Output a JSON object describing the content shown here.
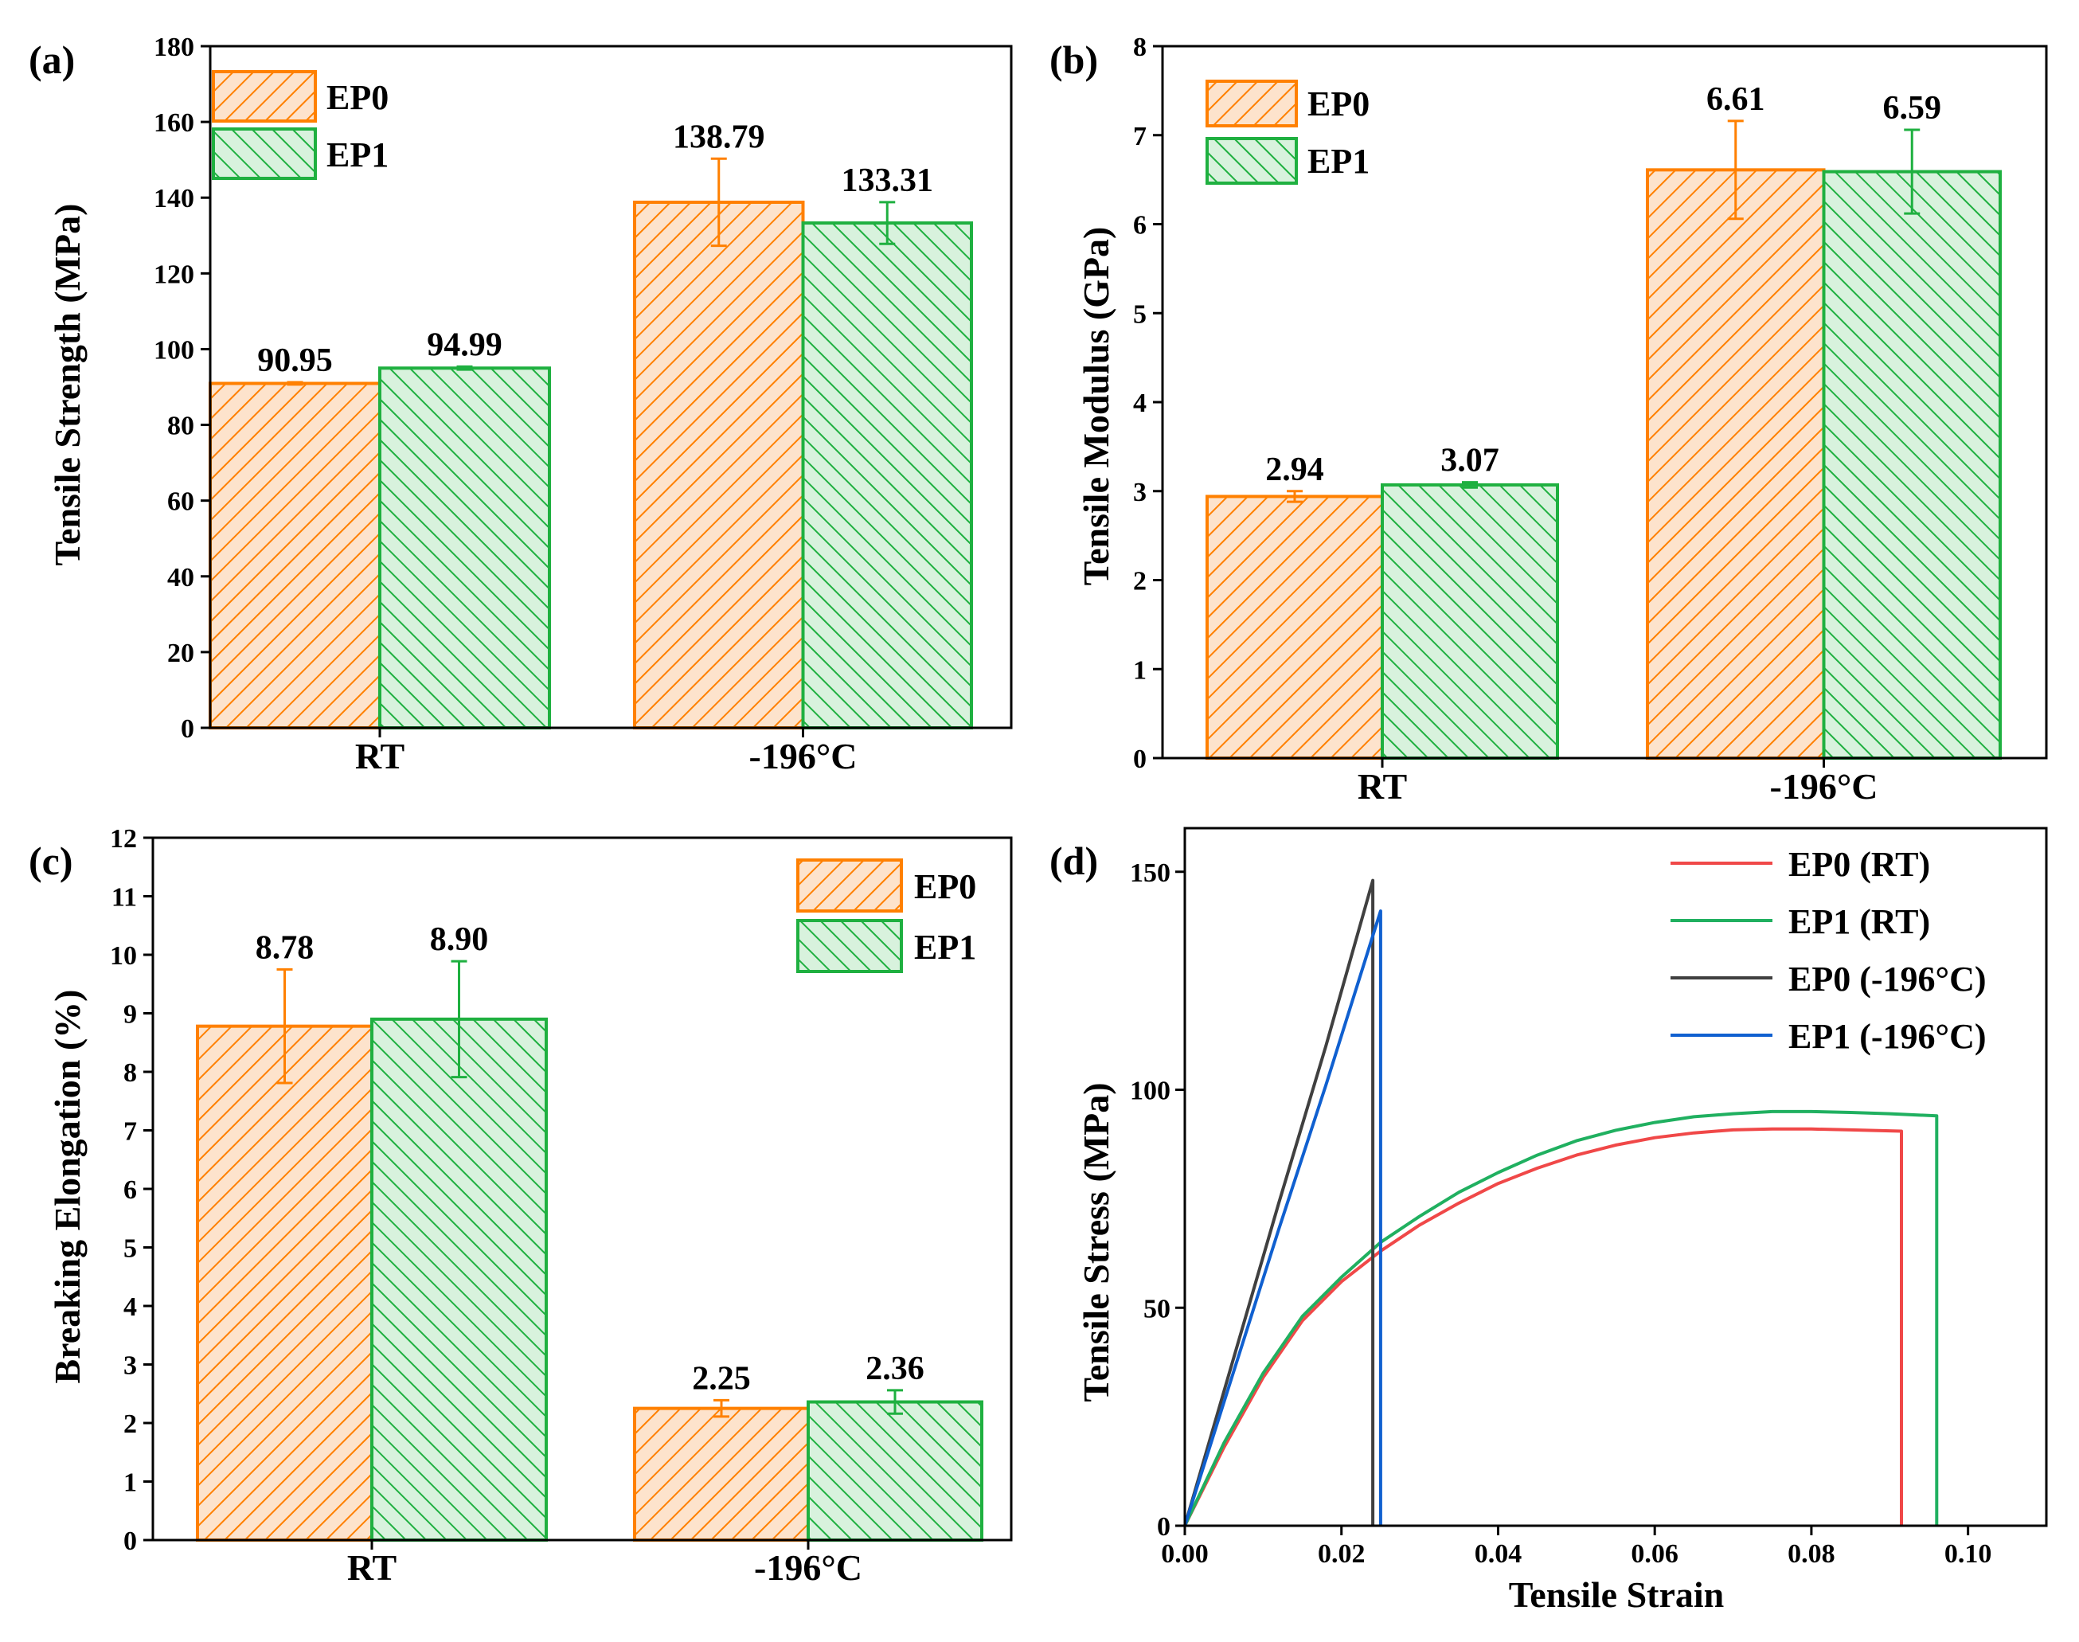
{
  "colors": {
    "ep0": "#ff8000",
    "ep0_fill": "#fde3cc",
    "ep1": "#1fb040",
    "ep1_fill": "#d8f2dd",
    "rt_line": "#f04848",
    "rt1_line": "#20b060",
    "cryo0_line": "#404040",
    "cryo1_line": "#1060d0",
    "axis": "#000000"
  },
  "chart_data": [
    {
      "panel": "(a)",
      "type": "bar",
      "ylabel": "Tensile Strength (MPa)",
      "categories": [
        "RT",
        "-196°C"
      ],
      "ylim": [
        0,
        180
      ],
      "yticks": [
        0,
        20,
        40,
        60,
        80,
        100,
        120,
        140,
        160,
        180
      ],
      "legend": [
        "EP0",
        "EP1"
      ],
      "legend_position": "top-left",
      "series": [
        {
          "name": "EP0",
          "values": [
            90.95,
            138.79
          ],
          "errors": [
            0.3,
            11.5
          ],
          "labels": [
            "90.95",
            "138.79"
          ]
        },
        {
          "name": "EP1",
          "values": [
            94.99,
            133.31
          ],
          "errors": [
            0.4,
            5.5
          ],
          "labels": [
            "94.99",
            "133.31"
          ]
        }
      ]
    },
    {
      "panel": "(b)",
      "type": "bar",
      "ylabel": "Tensile Modulus (GPa)",
      "categories": [
        "RT",
        "-196°C"
      ],
      "ylim": [
        0,
        8
      ],
      "yticks": [
        0,
        1,
        2,
        3,
        4,
        5,
        6,
        7,
        8
      ],
      "legend": [
        "EP0",
        "EP1"
      ],
      "legend_position": "top-left",
      "series": [
        {
          "name": "EP0",
          "values": [
            2.94,
            6.61
          ],
          "errors": [
            0.06,
            0.55
          ],
          "labels": [
            "2.94",
            "6.61"
          ]
        },
        {
          "name": "EP1",
          "values": [
            3.07,
            6.59
          ],
          "errors": [
            0.03,
            0.47
          ],
          "labels": [
            "3.07",
            "6.59"
          ]
        }
      ]
    },
    {
      "panel": "(c)",
      "type": "bar",
      "ylabel": "Breaking Elongation (%)",
      "categories": [
        "RT",
        "-196°C"
      ],
      "ylim": [
        0,
        12
      ],
      "yticks": [
        0,
        1,
        2,
        3,
        4,
        5,
        6,
        7,
        8,
        9,
        10,
        11,
        12
      ],
      "legend": [
        "EP0",
        "EP1"
      ],
      "legend_position": "top-right",
      "series": [
        {
          "name": "EP0",
          "values": [
            8.78,
            2.25
          ],
          "errors": [
            0.97,
            0.14
          ],
          "labels": [
            "8.78",
            "2.25"
          ]
        },
        {
          "name": "EP1",
          "values": [
            8.9,
            2.36
          ],
          "errors": [
            0.99,
            0.2
          ],
          "labels": [
            "8.90",
            "2.36"
          ]
        }
      ]
    },
    {
      "panel": "(d)",
      "type": "line",
      "xlabel": "Tensile Strain",
      "ylabel": "Tensile Stress (MPa)",
      "xlim": [
        0,
        0.11
      ],
      "ylim": [
        0,
        160
      ],
      "xticks": [
        0.0,
        0.02,
        0.04,
        0.06,
        0.08,
        0.1
      ],
      "xtick_labels": [
        "0.00",
        "0.02",
        "0.04",
        "0.06",
        "0.08",
        "0.10"
      ],
      "yticks": [
        0,
        50,
        100,
        150
      ],
      "legend_position": "top-right",
      "series": [
        {
          "name": "EP0 (RT)",
          "color_key": "rt_line",
          "x": [
            0,
            0.005,
            0.01,
            0.015,
            0.02,
            0.025,
            0.03,
            0.035,
            0.04,
            0.045,
            0.05,
            0.055,
            0.06,
            0.065,
            0.07,
            0.075,
            0.08,
            0.085,
            0.0915,
            0.0915
          ],
          "y": [
            0,
            18,
            34,
            47,
            56,
            63,
            69,
            74,
            78.5,
            82,
            85,
            87.3,
            89,
            90.1,
            90.8,
            91,
            91,
            90.8,
            90.5,
            0
          ]
        },
        {
          "name": "EP1 (RT)",
          "color_key": "rt1_line",
          "x": [
            0,
            0.005,
            0.01,
            0.015,
            0.02,
            0.025,
            0.03,
            0.035,
            0.04,
            0.045,
            0.05,
            0.055,
            0.06,
            0.065,
            0.07,
            0.075,
            0.08,
            0.085,
            0.09,
            0.096,
            0.096
          ],
          "y": [
            0,
            19,
            35,
            48,
            57,
            65,
            71,
            76.5,
            81,
            85,
            88.3,
            90.7,
            92.5,
            93.8,
            94.5,
            95,
            95,
            94.8,
            94.5,
            94,
            0
          ]
        },
        {
          "name": "EP0 (-196°C)",
          "color_key": "cryo0_line",
          "x": [
            0,
            0.006,
            0.012,
            0.018,
            0.024,
            0.024
          ],
          "y": [
            0,
            37,
            74,
            110,
            148,
            0
          ]
        },
        {
          "name": "EP1 (-196°C)",
          "color_key": "cryo1_line",
          "x": [
            0,
            0.006,
            0.012,
            0.018,
            0.025,
            0.025
          ],
          "y": [
            0,
            34,
            68,
            101,
            141,
            0
          ]
        }
      ]
    }
  ]
}
